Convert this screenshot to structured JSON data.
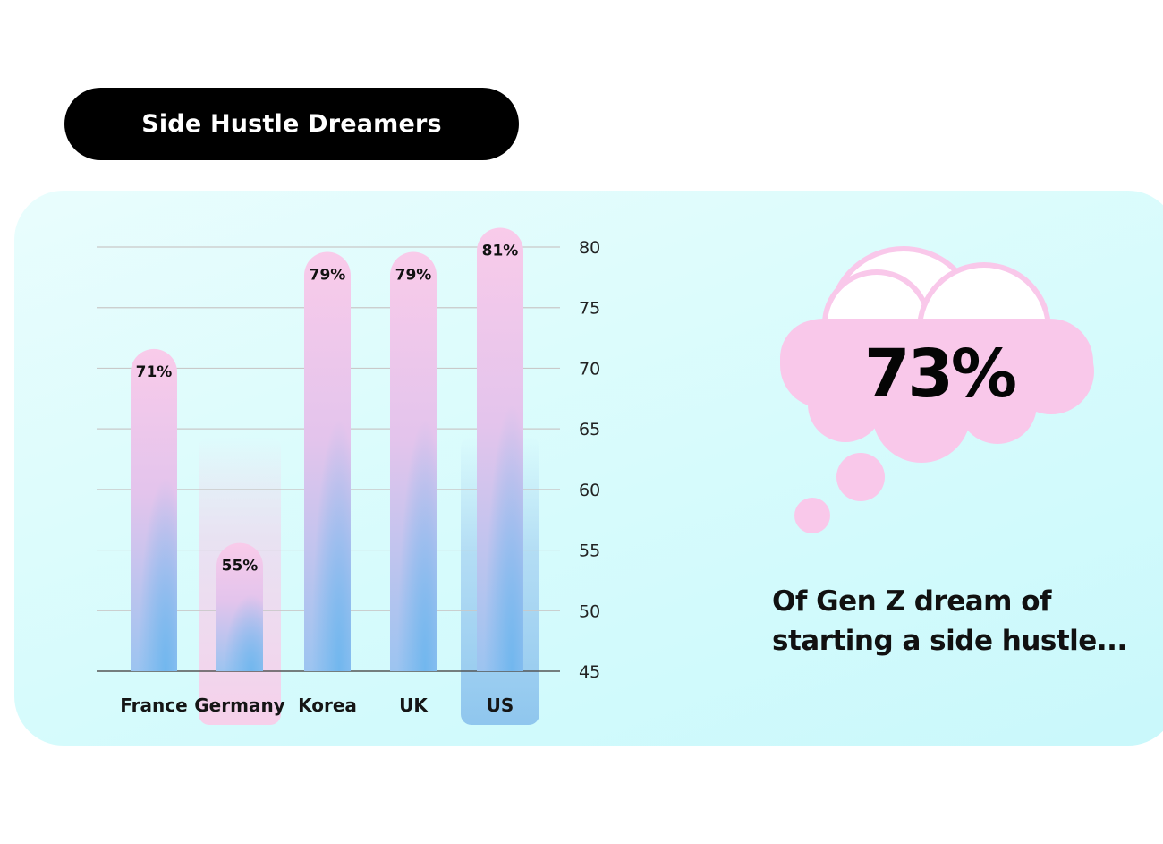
{
  "page": {
    "title": "Side Hustle Dreamers"
  },
  "callout": {
    "value": "73%",
    "caption_line1": "Of Gen Z dream of",
    "caption_line2": "starting a side hustle..."
  },
  "colors": {
    "bar_top": "#f9cbea",
    "bar_bottom": "#76bcee",
    "germany_highlight": "#f6d7ec",
    "us_highlight": "#8fc6ee",
    "cloud": "#f9c8ea",
    "gridline": "#c9c9c9"
  },
  "chart_data": {
    "type": "bar",
    "title": "",
    "xlabel": "",
    "ylabel": "",
    "categories": [
      "France",
      "Germany",
      "Korea",
      "UK",
      "US"
    ],
    "values": [
      71,
      55,
      79,
      79,
      81
    ],
    "data_labels": [
      "71%",
      "55%",
      "79%",
      "79%",
      "81%"
    ],
    "ylim": [
      45,
      80
    ],
    "yticks": [
      45,
      50,
      55,
      60,
      65,
      70,
      75,
      80
    ],
    "yaxis_side": "right",
    "grid": true,
    "highlighted_categories": [
      "Germany",
      "US"
    ]
  }
}
